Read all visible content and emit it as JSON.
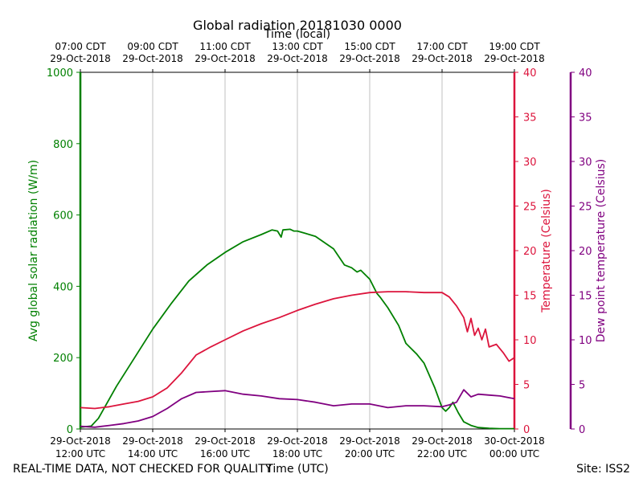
{
  "chart_data": {
    "type": "line",
    "title": "Global radiation 20181030 0000",
    "top_axis_label": "Time (local)",
    "bottom_axis_label": "Time (UTC)",
    "footer_left": "REAL-TIME DATA, NOT CHECKED FOR QUALITY",
    "footer_right": "Site: ISS2",
    "xlim": [
      12,
      24
    ],
    "x_tick_hours": [
      12,
      14,
      16,
      18,
      20,
      22,
      24
    ],
    "x_ticks_utc": [
      [
        "29-Oct-2018",
        "12:00 UTC"
      ],
      [
        "29-Oct-2018",
        "14:00 UTC"
      ],
      [
        "29-Oct-2018",
        "16:00 UTC"
      ],
      [
        "29-Oct-2018",
        "18:00 UTC"
      ],
      [
        "29-Oct-2018",
        "20:00 UTC"
      ],
      [
        "29-Oct-2018",
        "22:00 UTC"
      ],
      [
        "30-Oct-2018",
        "00:00 UTC"
      ]
    ],
    "x_ticks_local": [
      [
        "07:00 CDT",
        "29-Oct-2018"
      ],
      [
        "09:00 CDT",
        "29-Oct-2018"
      ],
      [
        "11:00 CDT",
        "29-Oct-2018"
      ],
      [
        "13:00 CDT",
        "29-Oct-2018"
      ],
      [
        "15:00 CDT",
        "29-Oct-2018"
      ],
      [
        "17:00 CDT",
        "29-Oct-2018"
      ],
      [
        "19:00 CDT",
        "29-Oct-2018"
      ]
    ],
    "axes": {
      "radiation": {
        "label": "Avg global solar radiation (W/m)",
        "ylim": [
          0,
          1000
        ],
        "ticks": [
          0,
          200,
          400,
          600,
          800,
          1000
        ],
        "color": "#008000"
      },
      "temperature": {
        "label": "Temperature (Celsius)",
        "ylim": [
          0,
          40
        ],
        "ticks": [
          0,
          5,
          10,
          15,
          20,
          25,
          30,
          35,
          40
        ],
        "color": "#dc143c"
      },
      "dewpoint": {
        "label": "Dew point temperature (Celsius)",
        "ylim": [
          0,
          40
        ],
        "ticks": [
          0,
          5,
          10,
          15,
          20,
          25,
          30,
          35,
          40
        ],
        "color": "#800080"
      }
    },
    "series": [
      {
        "name": "Avg global solar radiation",
        "axis": "radiation",
        "color": "#008000",
        "x": [
          12.0,
          12.3,
          12.5,
          13.0,
          13.5,
          14.0,
          14.5,
          15.0,
          15.5,
          16.0,
          16.5,
          17.0,
          17.3,
          17.45,
          17.55,
          17.6,
          17.8,
          17.9,
          18.0,
          18.5,
          19.0,
          19.3,
          19.5,
          19.65,
          19.75,
          19.85,
          20.0,
          20.2,
          20.3,
          20.5,
          20.8,
          21.0,
          21.3,
          21.5,
          21.8,
          22.0,
          22.1,
          22.2,
          22.3,
          22.45,
          22.6,
          22.8,
          23.0,
          23.3,
          23.6,
          24.0
        ],
        "y": [
          5,
          8,
          30,
          120,
          200,
          280,
          350,
          415,
          460,
          495,
          525,
          545,
          558,
          555,
          538,
          558,
          560,
          555,
          555,
          540,
          505,
          460,
          452,
          440,
          445,
          435,
          420,
          380,
          368,
          340,
          290,
          240,
          210,
          185,
          115,
          60,
          50,
          60,
          75,
          45,
          20,
          10,
          4,
          2,
          1,
          1
        ]
      },
      {
        "name": "Temperature",
        "axis": "temperature",
        "color": "#dc143c",
        "x": [
          12.0,
          12.4,
          12.8,
          13.2,
          13.6,
          14.0,
          14.4,
          14.8,
          15.2,
          15.6,
          16.0,
          16.5,
          17.0,
          17.5,
          18.0,
          18.5,
          19.0,
          19.5,
          20.0,
          20.5,
          21.0,
          21.5,
          22.0,
          22.2,
          22.4,
          22.6,
          22.7,
          22.8,
          22.9,
          23.0,
          23.1,
          23.2,
          23.3,
          23.5,
          23.7,
          23.85,
          24.0
        ],
        "y": [
          2.4,
          2.3,
          2.5,
          2.8,
          3.1,
          3.6,
          4.6,
          6.3,
          8.3,
          9.2,
          10.0,
          11.0,
          11.8,
          12.5,
          13.3,
          14.0,
          14.6,
          15.0,
          15.3,
          15.4,
          15.4,
          15.3,
          15.3,
          14.8,
          13.8,
          12.5,
          10.9,
          12.4,
          10.5,
          11.3,
          10.0,
          11.2,
          9.2,
          9.5,
          8.5,
          7.6,
          8.0
        ]
      },
      {
        "name": "Dew point temperature",
        "axis": "dewpoint",
        "color": "#800080",
        "x": [
          12.0,
          12.4,
          12.8,
          13.2,
          13.6,
          14.0,
          14.4,
          14.8,
          15.2,
          15.6,
          16.0,
          16.5,
          17.0,
          17.5,
          18.0,
          18.5,
          19.0,
          19.5,
          20.0,
          20.5,
          21.0,
          21.5,
          22.0,
          22.2,
          22.4,
          22.6,
          22.8,
          23.0,
          23.3,
          23.6,
          24.0
        ],
        "y": [
          0.3,
          0.2,
          0.4,
          0.6,
          0.9,
          1.4,
          2.3,
          3.4,
          4.1,
          4.2,
          4.3,
          3.9,
          3.7,
          3.4,
          3.3,
          3.0,
          2.6,
          2.8,
          2.8,
          2.4,
          2.6,
          2.6,
          2.5,
          2.7,
          3.0,
          4.4,
          3.6,
          3.9,
          3.8,
          3.7,
          3.4
        ]
      }
    ]
  }
}
